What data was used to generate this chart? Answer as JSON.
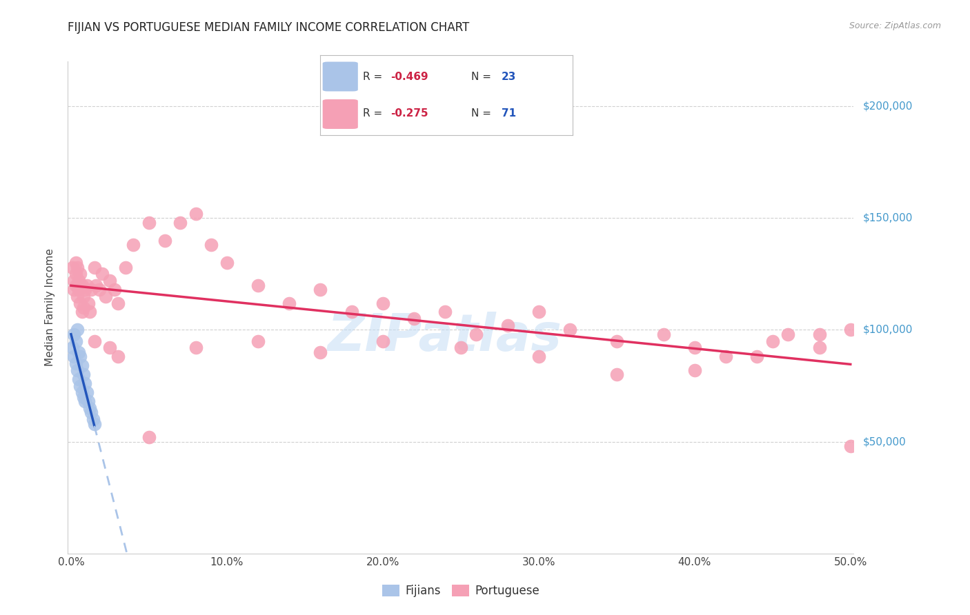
{
  "title": "FIJIAN VS PORTUGUESE MEDIAN FAMILY INCOME CORRELATION CHART",
  "source": "Source: ZipAtlas.com",
  "ylabel": "Median Family Income",
  "xlim": [
    -0.002,
    0.502
  ],
  "ylim": [
    0,
    220000
  ],
  "yticks": [
    50000,
    100000,
    150000,
    200000
  ],
  "ytick_labels": [
    "$50,000",
    "$100,000",
    "$150,000",
    "$200,000"
  ],
  "xtick_vals": [
    0.0,
    0.1,
    0.2,
    0.3,
    0.4,
    0.5
  ],
  "xtick_labels": [
    "0.0%",
    "10.0%",
    "20.0%",
    "30.0%",
    "40.0%",
    "50.0%"
  ],
  "background_color": "#ffffff",
  "grid_color": "#d0d0d0",
  "fijian_color": "#aac4e8",
  "portuguese_color": "#f5a0b5",
  "fijian_line_color": "#2255bb",
  "portuguese_line_color": "#e03060",
  "fijian_dashed_color": "#aac4e8",
  "watermark": "ZIPatlas",
  "fijian_x": [
    0.001,
    0.002,
    0.002,
    0.003,
    0.003,
    0.004,
    0.004,
    0.005,
    0.005,
    0.006,
    0.006,
    0.007,
    0.007,
    0.008,
    0.008,
    0.009,
    0.009,
    0.01,
    0.011,
    0.012,
    0.013,
    0.014,
    0.015
  ],
  "fijian_y": [
    92000,
    98000,
    88000,
    95000,
    85000,
    100000,
    82000,
    90000,
    78000,
    88000,
    75000,
    84000,
    72000,
    80000,
    70000,
    76000,
    68000,
    72000,
    68000,
    65000,
    63000,
    60000,
    58000
  ],
  "portuguese_x": [
    0.001,
    0.002,
    0.002,
    0.003,
    0.003,
    0.003,
    0.004,
    0.004,
    0.005,
    0.005,
    0.006,
    0.006,
    0.007,
    0.007,
    0.008,
    0.008,
    0.009,
    0.01,
    0.011,
    0.012,
    0.013,
    0.015,
    0.016,
    0.018,
    0.02,
    0.022,
    0.025,
    0.028,
    0.03,
    0.035,
    0.04,
    0.05,
    0.06,
    0.07,
    0.08,
    0.09,
    0.1,
    0.12,
    0.14,
    0.16,
    0.18,
    0.2,
    0.22,
    0.24,
    0.26,
    0.28,
    0.3,
    0.32,
    0.35,
    0.38,
    0.4,
    0.42,
    0.45,
    0.48,
    0.5,
    0.5,
    0.48,
    0.46,
    0.44,
    0.4,
    0.35,
    0.3,
    0.25,
    0.2,
    0.16,
    0.12,
    0.08,
    0.05,
    0.03,
    0.025,
    0.015
  ],
  "portuguese_y": [
    128000,
    122000,
    118000,
    130000,
    125000,
    120000,
    128000,
    115000,
    122000,
    118000,
    125000,
    112000,
    120000,
    108000,
    115000,
    110000,
    118000,
    120000,
    112000,
    108000,
    118000,
    128000,
    120000,
    118000,
    125000,
    115000,
    122000,
    118000,
    112000,
    128000,
    138000,
    148000,
    140000,
    148000,
    152000,
    138000,
    130000,
    120000,
    112000,
    118000,
    108000,
    112000,
    105000,
    108000,
    98000,
    102000,
    108000,
    100000,
    95000,
    98000,
    92000,
    88000,
    95000,
    98000,
    100000,
    48000,
    92000,
    98000,
    88000,
    82000,
    80000,
    88000,
    92000,
    95000,
    90000,
    95000,
    92000,
    52000,
    88000,
    92000,
    95000
  ]
}
